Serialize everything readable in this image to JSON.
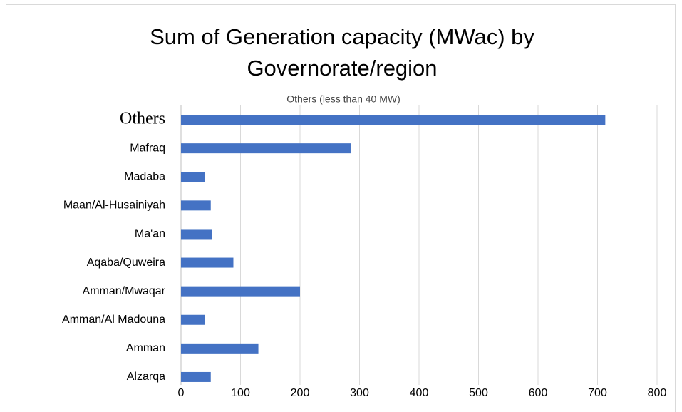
{
  "chart_data": {
    "type": "bar",
    "orientation": "horizontal",
    "title": "Sum of Generation capacity (MWac) by Governorate/region",
    "subtitle": "Others (less than 40 MW)",
    "categories": [
      "Others",
      "Mafraq",
      "Madaba",
      "Maan/Al-Husainiyah",
      "Ma'an",
      "Aqaba/Quweira",
      "Amman/Mwaqar",
      "Amman/Al Madouna",
      "Amman",
      "Alzarqa"
    ],
    "values": [
      713,
      285,
      40,
      50,
      52,
      88,
      200,
      40,
      130,
      50
    ],
    "color": "#4472c4",
    "xlim": [
      0,
      800
    ],
    "xticks": [
      0,
      100,
      200,
      300,
      400,
      500,
      600,
      700,
      800
    ],
    "grid": true
  }
}
